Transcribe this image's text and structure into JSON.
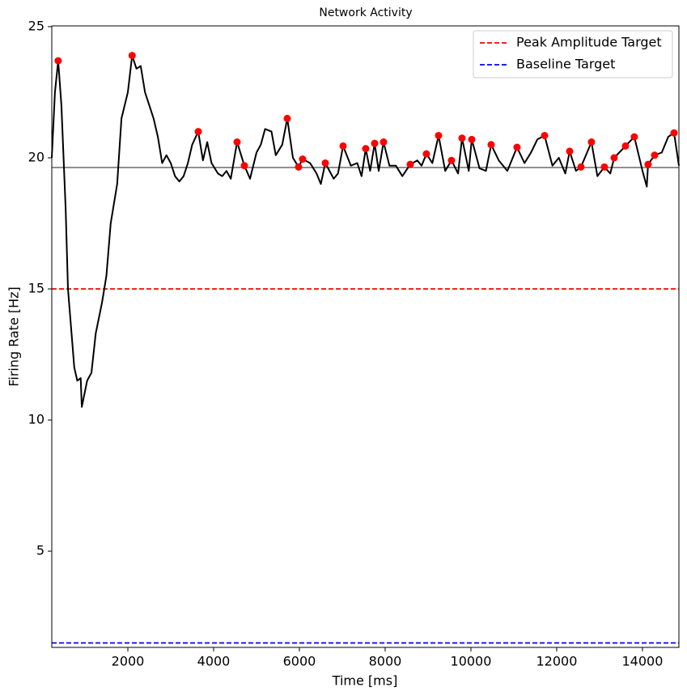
{
  "chart_data": {
    "type": "line",
    "title": "Network Activity",
    "x_label": "Time [ms]",
    "y_label": "Firing Rate [Hz]",
    "xlim": [
      226,
      14850
    ],
    "ylim": [
      1.33,
      25.03
    ],
    "xticks": [
      2000,
      4000,
      6000,
      8000,
      10000,
      12000,
      14000
    ],
    "yticks": [
      5,
      10,
      15,
      20,
      25
    ],
    "legend": "upper right",
    "series": [
      {
        "type": "line",
        "color": "#000000",
        "x": [
          226,
          300,
          375,
          450,
          550,
          603,
          750,
          820,
          900,
          926,
          1050,
          1150,
          1250,
          1400,
          1500,
          1600,
          1750,
          1850,
          2000,
          2100,
          2200,
          2300,
          2400,
          2500,
          2600,
          2700,
          2800,
          2900,
          3000,
          3100,
          3200,
          3300,
          3400,
          3500,
          3642,
          3750,
          3850,
          3950,
          4100,
          4200,
          4300,
          4400,
          4547,
          4717,
          4850,
          5000,
          5100,
          5200,
          5350,
          5450,
          5600,
          5717,
          5850,
          5981,
          6075,
          6250,
          6400,
          6500,
          6604,
          6800,
          6900,
          7019,
          7200,
          7350,
          7450,
          7547,
          7650,
          7755,
          7850,
          7962,
          8100,
          8250,
          8400,
          8585,
          8750,
          8850,
          8962,
          9100,
          9245,
          9400,
          9547,
          9700,
          9792,
          9950,
          10019,
          10200,
          10350,
          10472,
          10650,
          10850,
          11075,
          11250,
          11400,
          11550,
          11717,
          11900,
          12050,
          12200,
          12302,
          12450,
          12566,
          12811,
          12950,
          13113,
          13250,
          13340,
          13604,
          13811,
          14000,
          14100,
          14132,
          14283,
          14450,
          14600,
          14736,
          14850
        ],
        "values": [
          20.0,
          22.5,
          23.7,
          22.0,
          18.0,
          15.0,
          12.0,
          11.5,
          11.6,
          10.5,
          11.5,
          11.8,
          13.3,
          14.5,
          15.5,
          17.5,
          19.0,
          21.5,
          22.5,
          23.9,
          23.4,
          23.5,
          22.5,
          22.0,
          21.5,
          20.8,
          19.8,
          20.1,
          19.8,
          19.3,
          19.1,
          19.3,
          19.8,
          20.5,
          21.0,
          19.9,
          20.6,
          19.8,
          19.4,
          19.3,
          19.5,
          19.2,
          20.6,
          19.7,
          19.2,
          20.2,
          20.5,
          21.1,
          21.0,
          20.1,
          20.5,
          21.5,
          20.0,
          19.65,
          19.95,
          19.8,
          19.4,
          19.0,
          19.8,
          19.2,
          19.4,
          20.45,
          19.7,
          19.8,
          19.3,
          20.35,
          19.5,
          20.55,
          19.5,
          20.6,
          19.7,
          19.7,
          19.3,
          19.75,
          19.9,
          19.7,
          20.15,
          19.8,
          20.85,
          19.5,
          19.9,
          19.4,
          20.75,
          19.5,
          20.7,
          19.6,
          19.5,
          20.5,
          19.9,
          19.5,
          20.4,
          19.8,
          20.2,
          20.7,
          20.85,
          19.7,
          20.0,
          19.4,
          20.25,
          19.5,
          19.65,
          20.6,
          19.3,
          19.65,
          19.4,
          20.0,
          20.45,
          20.8,
          19.5,
          18.9,
          19.75,
          20.1,
          20.2,
          20.8,
          20.95,
          19.7
        ]
      },
      {
        "type": "scatter",
        "color": "#ff0000",
        "x": [
          375,
          2100,
          3642,
          4547,
          4717,
          5717,
          5981,
          6075,
          6604,
          7019,
          7547,
          7755,
          7962,
          8585,
          8962,
          9245,
          9547,
          9792,
          10019,
          10472,
          11075,
          11717,
          12302,
          12566,
          12811,
          13113,
          13340,
          13604,
          13811,
          14132,
          14283,
          14736
        ],
        "values": [
          23.7,
          23.9,
          21.0,
          20.6,
          19.7,
          21.5,
          19.65,
          19.95,
          19.8,
          20.45,
          20.35,
          20.55,
          20.6,
          19.75,
          20.15,
          20.85,
          19.9,
          20.75,
          20.7,
          20.5,
          20.4,
          20.85,
          20.25,
          19.65,
          20.6,
          19.65,
          20.0,
          20.45,
          20.8,
          19.75,
          20.1,
          20.95
        ]
      }
    ],
    "hlines": [
      {
        "name": "Peak Amplitude Target",
        "y": 15,
        "color": "#ff0000",
        "style": "dashed"
      },
      {
        "name": "Baseline Target",
        "y": 1.5,
        "color": "#0000ff",
        "style": "dashed"
      },
      {
        "y": 19.63,
        "color": "#808080",
        "style": "solid"
      }
    ]
  }
}
